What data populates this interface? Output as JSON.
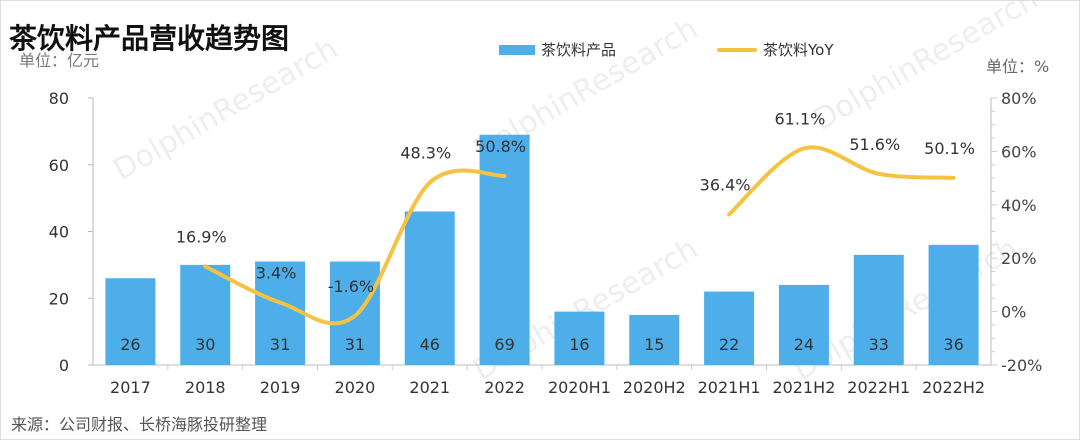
{
  "chart_data": {
    "type": "bar+line",
    "title": "茶饮料产品营收趋势图",
    "ylabel_left": "单位：亿元",
    "ylabel_right": "单位：%",
    "categories": [
      "2017",
      "2018",
      "2019",
      "2020",
      "2021",
      "2022",
      "2020H1",
      "2020H2",
      "2021H1",
      "2021H2",
      "2022H1",
      "2022H2"
    ],
    "series": [
      {
        "name": "茶饮料产品",
        "type": "bar",
        "axis": "left",
        "color": "#4DAEEA",
        "values": [
          26,
          30,
          31,
          31,
          46,
          69,
          16,
          15,
          22,
          24,
          33,
          36
        ]
      },
      {
        "name": "茶饮料YoY",
        "type": "line",
        "axis": "right",
        "color": "#F5C242",
        "values": [
          null,
          16.9,
          3.4,
          -1.6,
          48.3,
          50.8,
          null,
          null,
          36.4,
          61.1,
          51.6,
          50.1
        ],
        "labels": [
          "",
          "16.9%",
          "3.4%",
          "-1.6%",
          "48.3%",
          "50.8%",
          "",
          "",
          "36.4%",
          "61.1%",
          "51.6%",
          "50.1%"
        ]
      }
    ],
    "ylim_left": [
      0,
      80
    ],
    "yticks_left": [
      "0",
      "20",
      "40",
      "60",
      "80"
    ],
    "ylim_right": [
      -20,
      80
    ],
    "yticks_right": [
      "-20%",
      "0%",
      "20%",
      "40%",
      "60%",
      "80%"
    ],
    "legend": "top-center"
  },
  "source": "来源：公司财报、长桥海豚投研整理",
  "watermark": "LONGBRIDGE DolphinResearch"
}
